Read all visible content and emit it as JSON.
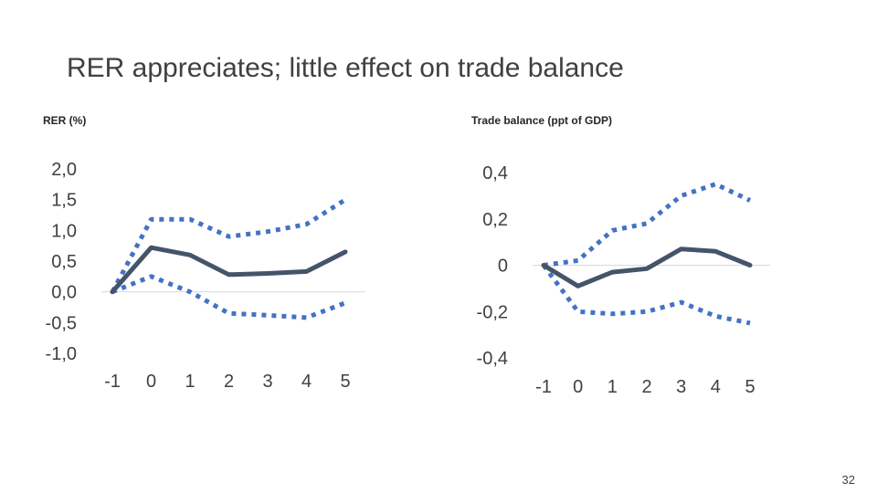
{
  "slide": {
    "title": "RER appreciates; little effect on trade balance",
    "page_number": "32"
  },
  "colors": {
    "main_line": "#44546A",
    "band_line": "#4472C4",
    "zero_line": "#D9D9D9",
    "text": "#404040"
  },
  "chart_data": [
    {
      "type": "line",
      "title": "RER (%)",
      "x": [
        -1,
        0,
        1,
        2,
        3,
        4,
        5
      ],
      "x_tick_labels": [
        "-1",
        "0",
        "1",
        "2",
        "3",
        "4",
        "5"
      ],
      "y_tick_labels": [
        "2,0",
        "1,5",
        "1,0",
        "0,5",
        "0,0",
        "-0,5",
        "-1,0"
      ],
      "ylim": [
        -1.0,
        2.0
      ],
      "series": [
        {
          "role": "estimate",
          "style": "solid",
          "values": [
            0.0,
            0.72,
            0.6,
            0.28,
            0.3,
            0.33,
            0.65
          ]
        },
        {
          "role": "upper band",
          "style": "dotted",
          "values": [
            0.0,
            1.18,
            1.18,
            0.9,
            0.98,
            1.1,
            1.5
          ]
        },
        {
          "role": "lower band",
          "style": "dotted",
          "values": [
            0.0,
            0.25,
            0.0,
            -0.35,
            -0.38,
            -0.42,
            -0.18
          ]
        }
      ]
    },
    {
      "type": "line",
      "title": "Trade balance (ppt of GDP)",
      "x": [
        -1,
        0,
        1,
        2,
        3,
        4,
        5
      ],
      "x_tick_labels": [
        "-1",
        "0",
        "1",
        "2",
        "3",
        "4",
        "5"
      ],
      "y_tick_labels": [
        "0,4",
        "0,2",
        "0",
        "-0,2",
        "-0,4"
      ],
      "ylim": [
        -0.4,
        0.4
      ],
      "series": [
        {
          "role": "estimate",
          "style": "solid",
          "values": [
            0.0,
            -0.09,
            -0.03,
            -0.015,
            0.07,
            0.06,
            0.0
          ]
        },
        {
          "role": "upper band",
          "style": "dotted",
          "values": [
            0.0,
            0.02,
            0.15,
            0.18,
            0.3,
            0.35,
            0.28
          ]
        },
        {
          "role": "lower band",
          "style": "dotted",
          "values": [
            0.0,
            -0.2,
            -0.21,
            -0.2,
            -0.16,
            -0.22,
            -0.25
          ]
        }
      ]
    }
  ]
}
